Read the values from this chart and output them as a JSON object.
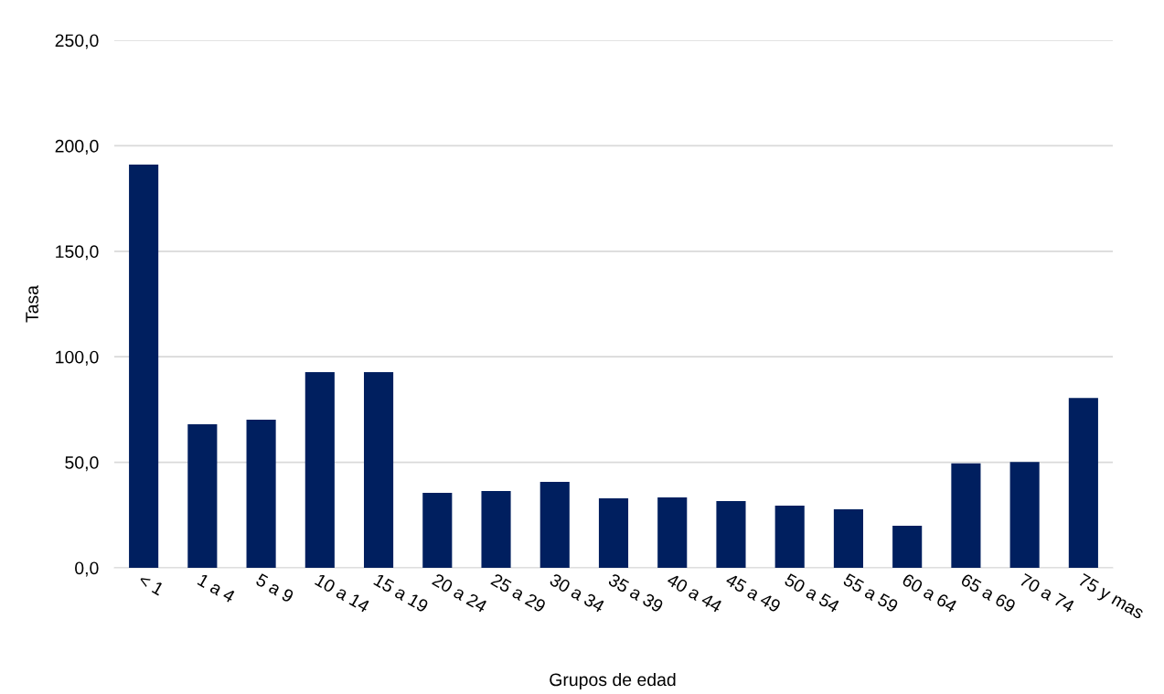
{
  "chart_data": {
    "type": "bar",
    "xlabel": "Grupos de edad",
    "ylabel": "Tasa",
    "categories": [
      "< 1",
      "1 a 4",
      "5 a 9",
      "10 a 14",
      "15 a 19",
      "20 a 24",
      "25 a 29",
      "30 a 34",
      "35 a 39",
      "40 a 44",
      "45 a 49",
      "50 a 54",
      "55 a 59",
      "60 a 64",
      "65 a 69",
      "70 a 74",
      "75 y mas"
    ],
    "values": [
      191.1,
      68.0,
      70.2,
      92.7,
      92.7,
      35.5,
      36.4,
      40.7,
      32.9,
      33.4,
      31.6,
      29.5,
      27.7,
      19.9,
      49.5,
      50.2,
      80.5
    ],
    "color": "#001f5f",
    "ylim": [
      0,
      250
    ],
    "yticks": [
      {
        "value": 0,
        "label": "0,0"
      },
      {
        "value": 50,
        "label": "50,0"
      },
      {
        "value": 100,
        "label": "100,0"
      },
      {
        "value": 150,
        "label": "150,0"
      },
      {
        "value": 200,
        "label": "200,0"
      },
      {
        "value": 250,
        "label": "250,0"
      }
    ],
    "grid": "y",
    "legend": false
  }
}
